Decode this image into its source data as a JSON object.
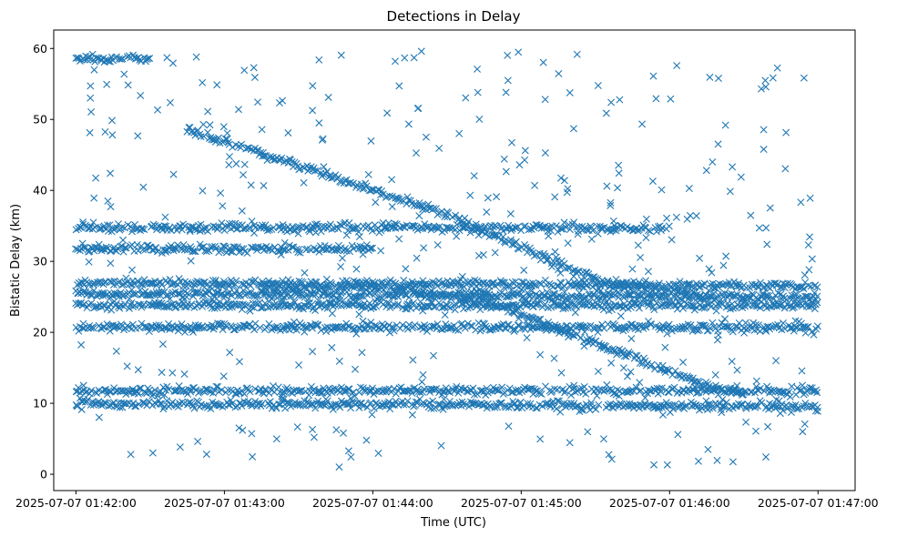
{
  "chart_data": {
    "type": "scatter",
    "title": "Detections in Delay",
    "xlabel": "Time (UTC)",
    "ylabel": "Bistatic Delay (km)",
    "xlim": [
      "2025-07-07 01:41:51",
      "2025-07-07 01:47:15"
    ],
    "ylim": [
      -2.3,
      62.6
    ],
    "x_ticks": [
      "2025-07-07 01:42:00",
      "2025-07-07 01:43:00",
      "2025-07-07 01:44:00",
      "2025-07-07 01:45:00",
      "2025-07-07 01:46:00",
      "2025-07-07 01:47:00"
    ],
    "y_ticks": [
      0,
      10,
      20,
      30,
      40,
      50,
      60
    ],
    "x_range": [
      "2025-07-07 01:42:00",
      "2025-07-07 01:47:00"
    ],
    "marker": "x",
    "color": "#1f77b4",
    "grid": false,
    "legend": "none",
    "tracks": [
      {
        "x": [
          "2025-07-07 01:42:45",
          "2025-07-07 01:43:30",
          "2025-07-07 01:44:30",
          "2025-07-07 01:45:30",
          "2025-07-07 01:46:15"
        ],
        "y": [
          48.5,
          43.5,
          36.5,
          27.5,
          25.0
        ]
      },
      {
        "x": [
          "2025-07-07 01:43:15",
          "2025-07-07 01:44:00",
          "2025-07-07 01:44:45",
          "2025-07-07 01:45:30",
          "2025-07-07 01:46:15",
          "2025-07-07 01:46:30"
        ],
        "y": [
          26.0,
          26.5,
          24.5,
          18.5,
          12.5,
          11.5
        ]
      },
      {
        "x": [
          "2025-07-07 01:42:00",
          "2025-07-07 01:47:00"
        ],
        "y": [
          27.0,
          26.5
        ]
      },
      {
        "x": [
          "2025-07-07 01:42:00",
          "2025-07-07 01:47:00"
        ],
        "y": [
          25.5,
          25.0
        ]
      },
      {
        "x": [
          "2025-07-07 01:42:00",
          "2025-07-07 01:47:00"
        ],
        "y": [
          23.8,
          23.8
        ]
      },
      {
        "x": [
          "2025-07-07 01:42:00",
          "2025-07-07 01:47:00"
        ],
        "y": [
          20.7,
          20.7
        ]
      },
      {
        "x": [
          "2025-07-07 01:42:00",
          "2025-07-07 01:47:00"
        ],
        "y": [
          11.7,
          11.8
        ]
      },
      {
        "x": [
          "2025-07-07 01:42:00",
          "2025-07-07 01:47:00"
        ],
        "y": [
          10.0,
          9.5
        ]
      },
      {
        "x": [
          "2025-07-07 01:42:00",
          "2025-07-07 01:46:00"
        ],
        "y": [
          34.7,
          34.7
        ]
      },
      {
        "x": [
          "2025-07-07 01:42:00",
          "2025-07-07 01:44:00"
        ],
        "y": [
          31.8,
          31.8
        ]
      },
      {
        "x": [
          "2025-07-07 01:42:00",
          "2025-07-07 01:42:30"
        ],
        "y": [
          58.5,
          58.5
        ]
      }
    ],
    "noise_points": 420,
    "noise_y_range": [
      1,
      60
    ]
  }
}
